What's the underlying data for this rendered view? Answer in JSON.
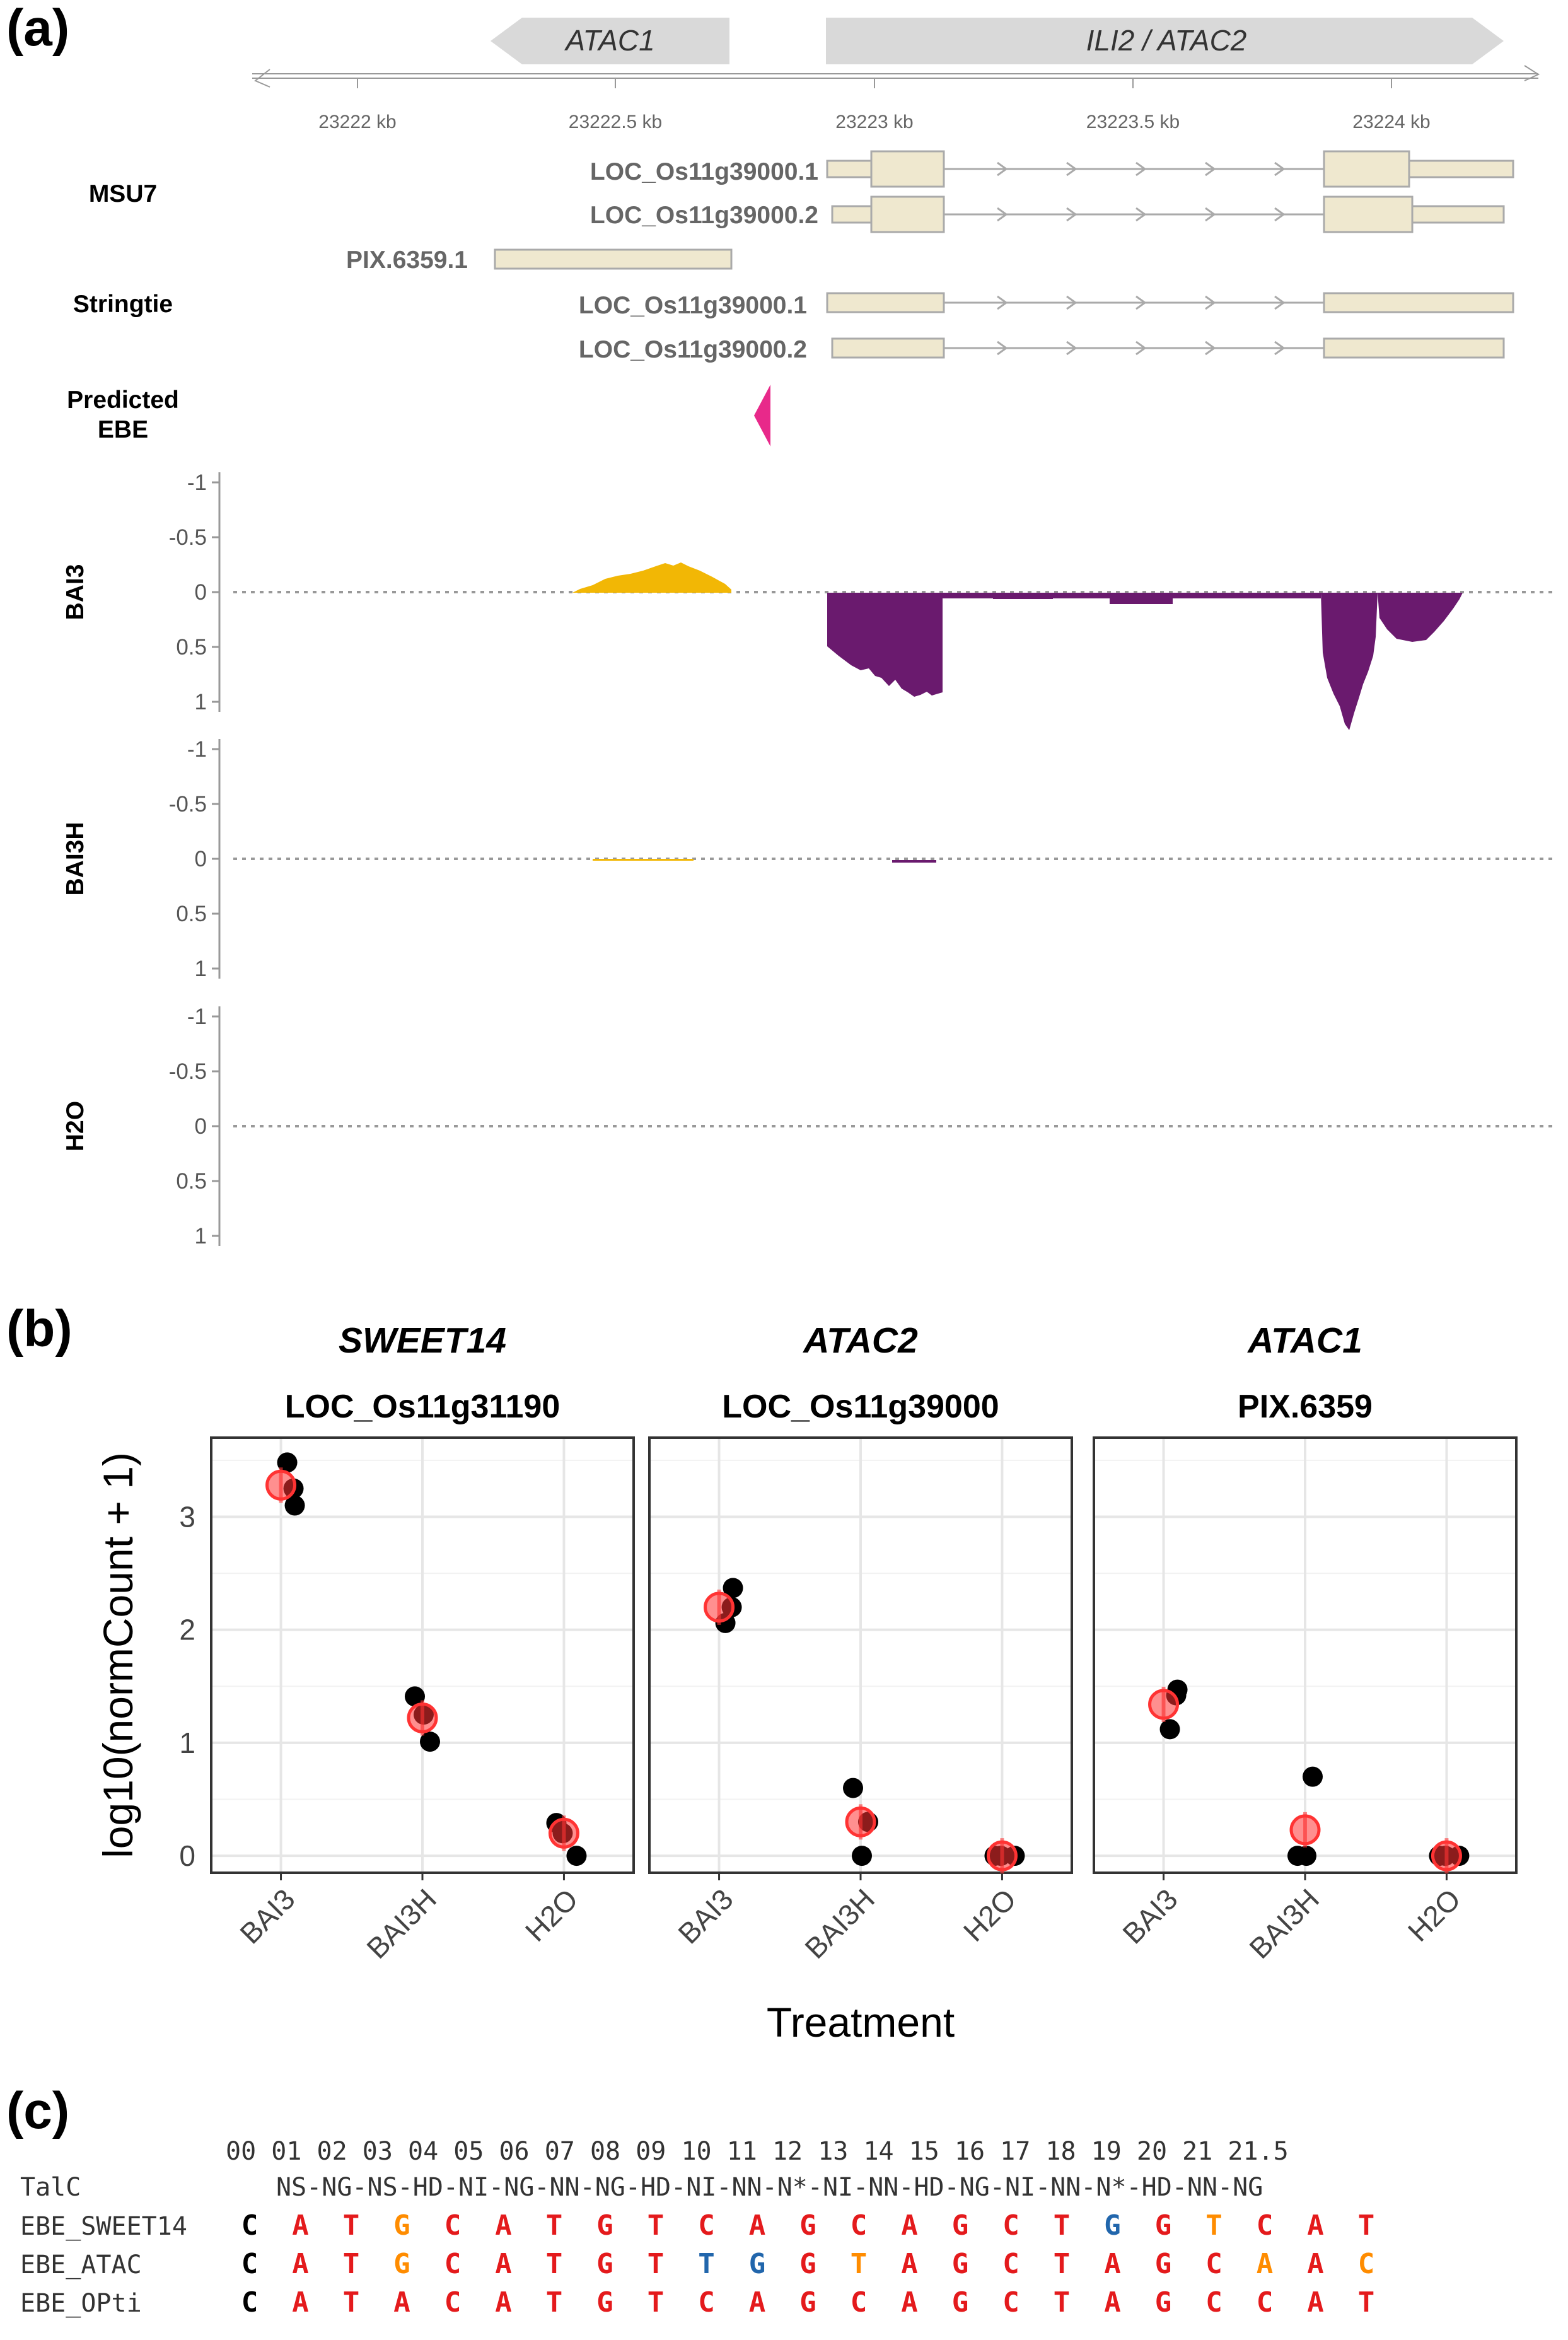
{
  "panel_a": {
    "letter": "(a)",
    "gene_arrows": [
      {
        "label": "ATAC1",
        "direction": "left"
      },
      {
        "label": "ILI2 / ATAC2",
        "direction": "right"
      }
    ],
    "axis_ticks": [
      "23222 kb",
      "23222.5 kb",
      "23223 kb",
      "23223.5 kb",
      "23224 kb"
    ],
    "annotation_groups": [
      "MSU7",
      "Stringtie",
      "Predicted EBE"
    ],
    "transcripts": [
      {
        "group": "MSU7",
        "label": "LOC_Os11g39000.1"
      },
      {
        "group": "MSU7",
        "label": "LOC_Os11g39000.2"
      },
      {
        "group": "Stringtie",
        "label": "PIX.6359.1"
      },
      {
        "group": "Stringtie",
        "label": "LOC_Os11g39000.1"
      },
      {
        "group": "Stringtie",
        "label": "LOC_Os11g39000.2"
      }
    ],
    "coverage_tracks": [
      "BAI3",
      "BAI3H",
      "H2O"
    ],
    "coverage_ticks": [
      "-1",
      "-0.5",
      "0",
      "0.5",
      "1"
    ],
    "colors": {
      "forward_strand": "#f2b705",
      "reverse_strand": "#6a1a6e",
      "ebe": "#e8298a",
      "exon_fill": "#efe8cf",
      "exon_stroke": "#aaaaaa",
      "baseline": "#999999"
    }
  },
  "panel_b": {
    "letter": "(b)",
    "chart_data": {
      "type": "scatter",
      "ylabel": "log10(normCount + 1)",
      "xlabel": "Treatment",
      "categories": [
        "BAI3",
        "BAI3H",
        "H2O"
      ],
      "ylim": [
        -0.15,
        3.7
      ],
      "yticks": [
        0,
        1,
        2,
        3
      ],
      "grid": true,
      "facets": [
        {
          "gene": "SWEET14",
          "id": "LOC_Os11g31190",
          "replicates": [
            [
              3.48,
              3.1,
              3.25
            ],
            [
              1.41,
              1.01,
              1.25
            ],
            [
              0.29,
              0.0,
              0.2
            ]
          ],
          "means": [
            3.28,
            1.22,
            0.2
          ]
        },
        {
          "gene": "ATAC2",
          "id": "LOC_Os11g39000",
          "replicates": [
            [
              2.06,
              2.37,
              2.2
            ],
            [
              0.6,
              0.3,
              0.0
            ]
          ],
          "replicates_h2o": [
            0.0,
            0.0,
            0.0
          ],
          "means": [
            2.2,
            0.3,
            0.0
          ]
        },
        {
          "gene": "ATAC1",
          "id": "PIX.6359",
          "replicates": [
            [
              1.12,
              1.47,
              1.42
            ],
            [
              0.0,
              0.7,
              0.0
            ],
            [
              0.0,
              0.0,
              0.0
            ]
          ],
          "means": [
            1.34,
            0.23,
            0.0
          ]
        }
      ],
      "colors": {
        "replicate": "#000000",
        "mean": "#ff3333"
      }
    }
  },
  "panel_c": {
    "letter": "(c)",
    "positions": [
      "00",
      "01",
      "02",
      "03",
      "04",
      "05",
      "06",
      "07",
      "08",
      "09",
      "10",
      "11",
      "12",
      "13",
      "14",
      "15",
      "16",
      "17",
      "18",
      "19",
      "20",
      "21",
      "21.5"
    ],
    "talc_label": "TalC",
    "talc_rvds": "NS-NG-NS-HD-NI-NG-NN-NG-HD-NI-NN-N*-NI-NN-HD-NG-NI-NN-N*-HD-NN-NG",
    "sequences": [
      {
        "label": "EBE_SWEET14",
        "bases": [
          "C",
          "A",
          "T",
          "G",
          "C",
          "A",
          "T",
          "G",
          "T",
          "C",
          "A",
          "G",
          "C",
          "A",
          "G",
          "C",
          "T",
          "G",
          "G",
          "T",
          "C",
          "A",
          "T"
        ],
        "colors": [
          "k",
          "r",
          "r",
          "o",
          "r",
          "r",
          "r",
          "r",
          "r",
          "r",
          "r",
          "r",
          "r",
          "r",
          "r",
          "r",
          "r",
          "b",
          "r",
          "o",
          "r",
          "r",
          "r"
        ]
      },
      {
        "label": "EBE_ATAC",
        "bases": [
          "C",
          "A",
          "T",
          "G",
          "C",
          "A",
          "T",
          "G",
          "T",
          "T",
          "G",
          "G",
          "T",
          "A",
          "G",
          "C",
          "T",
          "A",
          "G",
          "C",
          "A",
          "A",
          "C"
        ],
        "colors": [
          "k",
          "r",
          "r",
          "o",
          "r",
          "r",
          "r",
          "r",
          "r",
          "b",
          "b",
          "r",
          "o",
          "r",
          "r",
          "r",
          "r",
          "r",
          "r",
          "r",
          "o",
          "r",
          "o"
        ]
      },
      {
        "label": "EBE_OPti",
        "bases": [
          "C",
          "A",
          "T",
          "A",
          "C",
          "A",
          "T",
          "G",
          "T",
          "C",
          "A",
          "G",
          "C",
          "A",
          "G",
          "C",
          "T",
          "A",
          "G",
          "C",
          "C",
          "A",
          "T"
        ],
        "colors": [
          "k",
          "r",
          "r",
          "r",
          "r",
          "r",
          "r",
          "r",
          "r",
          "r",
          "r",
          "r",
          "r",
          "r",
          "r",
          "r",
          "r",
          "r",
          "r",
          "r",
          "r",
          "r",
          "r"
        ]
      }
    ],
    "base_colors": {
      "k": "#000000",
      "r": "#e41a1c",
      "o": "#ff8c00",
      "b": "#2166ac"
    }
  }
}
